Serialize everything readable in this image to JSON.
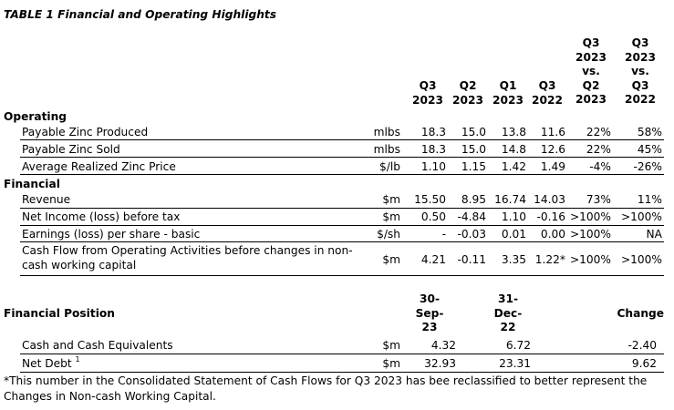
{
  "title": "TABLE 1 Financial and Operating Highlights",
  "col_headers": [
    [
      "Q3",
      "2023"
    ],
    [
      "Q2",
      "2023"
    ],
    [
      "Q1",
      "2023"
    ],
    [
      "Q3",
      "2022"
    ],
    [
      "Q3",
      "2023",
      "vs.",
      "Q2",
      "2023"
    ],
    [
      "Q3",
      "2023",
      "vs.",
      "Q3",
      "2022"
    ]
  ],
  "sections": [
    {
      "name": "Operating",
      "rows": [
        {
          "label": "Payable Zinc Produced",
          "unit": "mlbs",
          "values": [
            "18.3",
            "15.0",
            "13.8",
            "11.6",
            "22%",
            "58%"
          ]
        },
        {
          "label": "Payable Zinc Sold",
          "unit": "mlbs",
          "values": [
            "18.3",
            "15.0",
            "14.8",
            "12.6",
            "22%",
            "45%"
          ]
        },
        {
          "label": "Average Realized Zinc Price",
          "unit": "$/lb",
          "values": [
            "1.10",
            "1.15",
            "1.42",
            "1.49",
            "-4%",
            "-26%"
          ]
        }
      ]
    },
    {
      "name": "Financial",
      "rows": [
        {
          "label": "Revenue",
          "unit": "$m",
          "values": [
            "15.50",
            "8.95",
            "16.74",
            "14.03",
            "73%",
            "11%"
          ]
        },
        {
          "label": "Net Income (loss) before tax",
          "unit": "$m",
          "values": [
            "0.50",
            "-4.84",
            "1.10",
            "-0.16",
            ">100%",
            ">100%"
          ]
        },
        {
          "label": "Earnings (loss) per share - basic",
          "unit": "$/sh",
          "values": [
            "-",
            "-0.03",
            "0.01",
            "0.00",
            ">100%",
            "NA"
          ]
        },
        {
          "label": "Cash Flow from Operating Activities before changes in non-cash working capital",
          "unit": "$m",
          "values": [
            "4.21",
            "-0.11",
            "3.35",
            "1.22*",
            ">100%",
            ">100%"
          ]
        }
      ]
    }
  ],
  "position": {
    "title": "Financial Position",
    "col1": [
      "30-",
      "Sep-",
      "23"
    ],
    "col2": [
      "31-",
      "Dec-",
      "22"
    ],
    "col3": "Change",
    "rows": [
      {
        "label": "Cash and Cash Equivalents",
        "sup": "",
        "unit": "$m",
        "v1": "4.32",
        "v2": "6.72",
        "v3": "-2.40"
      },
      {
        "label": "Net Debt",
        "sup": "1",
        "unit": "$m",
        "v1": "32.93",
        "v2": "23.31",
        "v3": "9.62"
      }
    ]
  },
  "footnote": "*This number in the Consolidated Statement of Cash Flows for Q3 2023 has bee reclassified to better represent the Changes in Non-cash Working Capital."
}
